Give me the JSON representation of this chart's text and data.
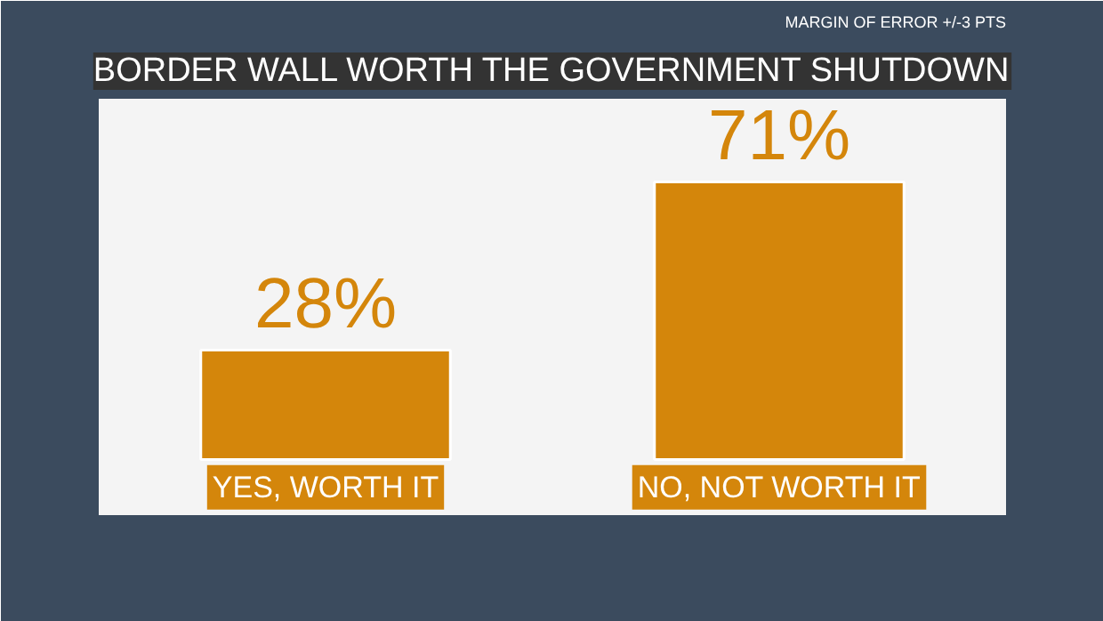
{
  "chart_data": {
    "type": "bar",
    "title": "BORDER WALL WORTH THE GOVERNMENT SHUTDOWN",
    "categories": [
      "YES, WORTH IT",
      "NO, NOT WORTH IT"
    ],
    "values": [
      28,
      71
    ],
    "value_labels": [
      "28%",
      "71%"
    ],
    "color": "#d4860b",
    "annotations": [
      "MARGIN OF ERROR +/-3 PTS"
    ]
  }
}
